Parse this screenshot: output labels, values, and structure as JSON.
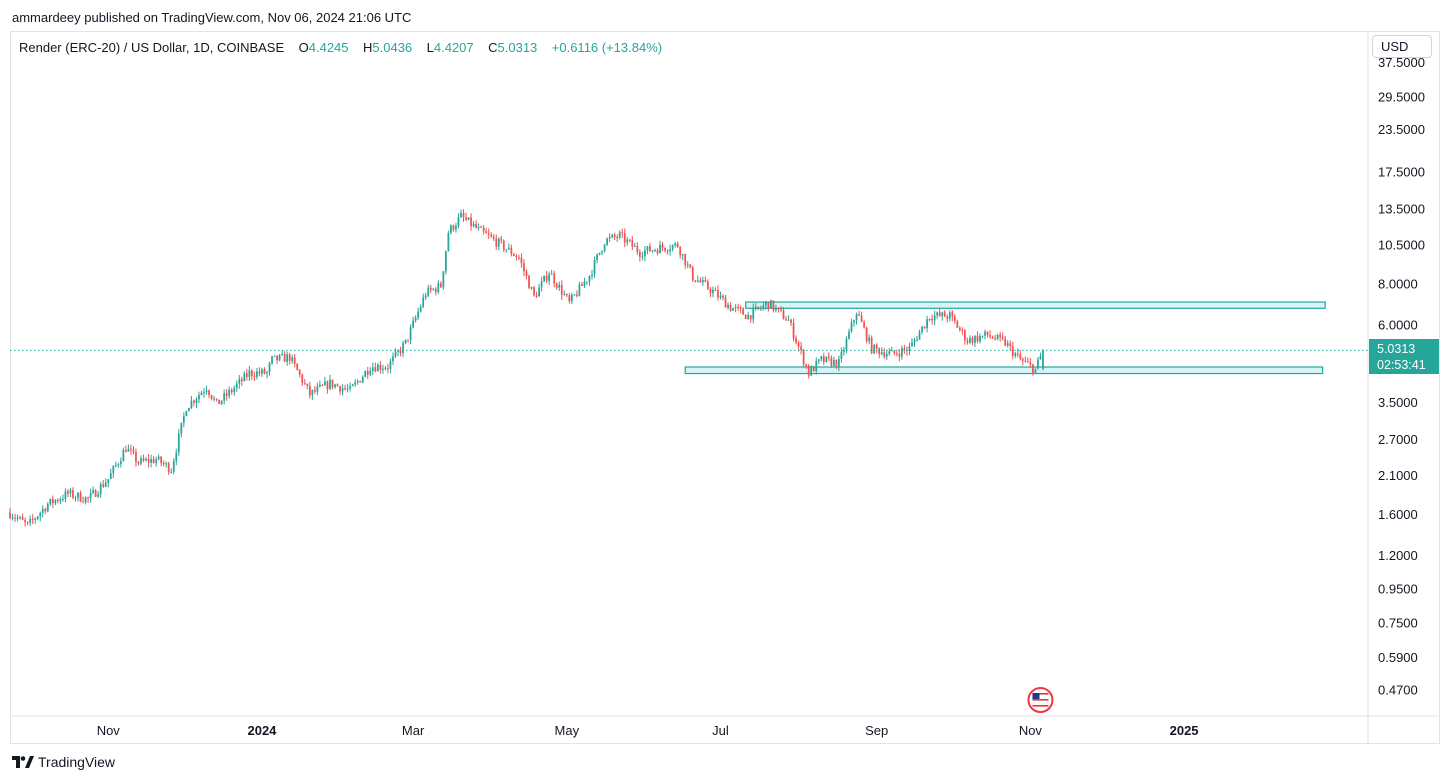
{
  "publisher_line": "ammardeey published on TradingView.com, Nov 06, 2024 21:06 UTC",
  "legend": {
    "symbol": "Render (ERC-20) / US Dollar, 1D, COINBASE",
    "open_label": "O",
    "open": "4.4245",
    "high_label": "H",
    "high": "5.0436",
    "low_label": "L",
    "low": "4.4207",
    "close_label": "C",
    "close": "5.0313",
    "change": "+0.6116 (+13.84%)"
  },
  "currency_button": "USD",
  "last_price": {
    "value": "5.0313",
    "countdown": "02:53:41"
  },
  "footer": {
    "brand": "TradingView"
  },
  "colors": {
    "up": "#26a69a",
    "down": "#ef5350",
    "zone_fill": "#b2ebf2",
    "zone_stroke": "#26a69a"
  },
  "chart_data": {
    "type": "candlestick",
    "title": "",
    "scale": "log",
    "ylim": [
      0.42,
      40
    ],
    "y_ticks": [
      "37.5000",
      "29.5000",
      "23.5000",
      "17.5000",
      "13.5000",
      "10.5000",
      "8.0000",
      "6.0000",
      "5.0313",
      "3.5000",
      "2.7000",
      "2.1000",
      "1.6000",
      "1.2000",
      "0.9500",
      "0.7500",
      "0.5900",
      "0.4700"
    ],
    "y_tick_values": [
      37.5,
      29.5,
      23.5,
      17.5,
      13.5,
      10.5,
      8.0,
      6.0,
      5.0313,
      3.5,
      2.7,
      2.1,
      1.6,
      1.2,
      0.95,
      0.75,
      0.59,
      0.47
    ],
    "x_ticks": [
      {
        "label": "Nov",
        "date": "2023-11-01",
        "bold": false
      },
      {
        "label": "2024",
        "date": "2024-01-01",
        "bold": true
      },
      {
        "label": "Mar",
        "date": "2024-03-01",
        "bold": false
      },
      {
        "label": "May",
        "date": "2024-05-01",
        "bold": false
      },
      {
        "label": "Jul",
        "date": "2024-07-01",
        "bold": false
      },
      {
        "label": "Sep",
        "date": "2024-09-01",
        "bold": false
      },
      {
        "label": "Nov",
        "date": "2024-11-01",
        "bold": false
      },
      {
        "label": "2025",
        "date": "2025-01-01",
        "bold": true
      }
    ],
    "xlim": [
      "2023-09-23",
      "2025-03-15"
    ],
    "last_date": "2024-11-06",
    "price_path": [
      [
        "2023-09-23",
        1.62
      ],
      [
        "2023-09-30",
        1.48
      ],
      [
        "2023-10-08",
        1.72
      ],
      [
        "2023-10-16",
        1.85
      ],
      [
        "2023-10-24",
        1.78
      ],
      [
        "2023-11-01",
        2.05
      ],
      [
        "2023-11-08",
        2.55
      ],
      [
        "2023-11-13",
        2.3
      ],
      [
        "2023-11-20",
        2.35
      ],
      [
        "2023-11-26",
        2.2
      ],
      [
        "2023-12-02",
        3.4
      ],
      [
        "2023-12-10",
        3.9
      ],
      [
        "2023-12-14",
        3.45
      ],
      [
        "2023-12-20",
        3.8
      ],
      [
        "2023-12-27",
        4.3
      ],
      [
        "2024-01-03",
        4.3
      ],
      [
        "2024-01-05",
        4.7
      ],
      [
        "2024-01-12",
        4.8
      ],
      [
        "2024-01-20",
        3.7
      ],
      [
        "2024-01-28",
        4.0
      ],
      [
        "2024-02-05",
        3.8
      ],
      [
        "2024-02-13",
        4.5
      ],
      [
        "2024-02-20",
        4.5
      ],
      [
        "2024-02-27",
        5.3
      ],
      [
        "2024-03-06",
        7.5
      ],
      [
        "2024-03-12",
        7.9
      ],
      [
        "2024-03-15",
        11.5
      ],
      [
        "2024-03-20",
        12.8
      ],
      [
        "2024-03-28",
        11.5
      ],
      [
        "2024-04-05",
        10.5
      ],
      [
        "2024-04-12",
        9.6
      ],
      [
        "2024-04-18",
        7.3
      ],
      [
        "2024-04-24",
        8.7
      ],
      [
        "2024-05-02",
        7.0
      ],
      [
        "2024-05-10",
        8.5
      ],
      [
        "2024-05-16",
        10.8
      ],
      [
        "2024-05-22",
        11.2
      ],
      [
        "2024-05-30",
        10.0
      ],
      [
        "2024-06-07",
        10.3
      ],
      [
        "2024-06-14",
        10.5
      ],
      [
        "2024-06-20",
        8.4
      ],
      [
        "2024-06-28",
        7.6
      ],
      [
        "2024-07-05",
        6.8
      ],
      [
        "2024-07-12",
        6.4
      ],
      [
        "2024-07-20",
        7.0
      ],
      [
        "2024-07-28",
        6.2
      ],
      [
        "2024-08-05",
        4.3
      ],
      [
        "2024-08-10",
        4.7
      ],
      [
        "2024-08-17",
        4.6
      ],
      [
        "2024-08-24",
        6.6
      ],
      [
        "2024-08-30",
        5.1
      ],
      [
        "2024-09-07",
        4.9
      ],
      [
        "2024-09-14",
        5.1
      ],
      [
        "2024-09-22",
        6.4
      ],
      [
        "2024-09-30",
        6.4
      ],
      [
        "2024-10-07",
        5.4
      ],
      [
        "2024-10-15",
        5.6
      ],
      [
        "2024-10-22",
        5.3
      ],
      [
        "2024-10-28",
        4.7
      ],
      [
        "2024-11-03",
        4.4
      ],
      [
        "2024-11-06",
        5.03
      ]
    ],
    "zones": [
      {
        "start": "2024-07-11",
        "end": "2025-02-26",
        "low": 6.75,
        "high": 7.05
      },
      {
        "start": "2024-06-17",
        "end": "2025-02-25",
        "low": 4.28,
        "high": 4.48
      }
    ],
    "event_marker": {
      "date": "2024-11-05",
      "flag": "us-flag"
    }
  }
}
